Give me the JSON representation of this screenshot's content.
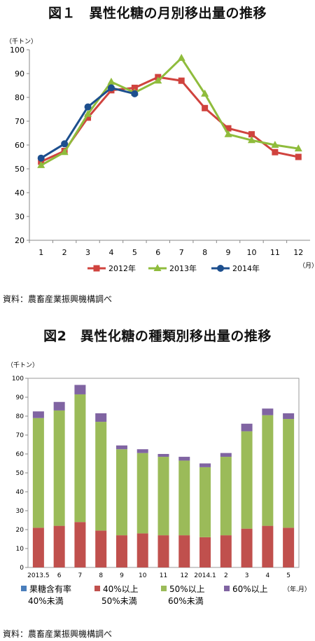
{
  "figure1": {
    "title": "図１　異性化糖の月別移出量の推移",
    "unit_label": "（千トン）",
    "x_unit_label": "（月）",
    "source": "資料：農畜産業振興機構調べ"
  },
  "figure2": {
    "title": "図2　異性化糖の種類別移出量の推移",
    "unit_label": "（千トン）",
    "x_unit_label": "（年.月）",
    "source": "資料：農畜産業振興機構調べ"
  },
  "chart_data": [
    {
      "type": "line",
      "title": "図１　異性化糖の月別移出量の推移",
      "ylabel": "（千トン）",
      "xlabel": "（月）",
      "ylim": [
        20,
        100
      ],
      "yticks": [
        20,
        30,
        40,
        50,
        60,
        70,
        80,
        90,
        100
      ],
      "categories": [
        "1",
        "2",
        "3",
        "4",
        "5",
        "6",
        "7",
        "8",
        "9",
        "10",
        "11",
        "12"
      ],
      "grid": false,
      "legend": "bottom",
      "series": [
        {
          "name": "2012年",
          "color": "#d0433e",
          "marker": "square",
          "values": [
            53.0,
            57.5,
            71.5,
            83.0,
            84.0,
            88.5,
            87.0,
            75.5,
            67.0,
            64.5,
            57.0,
            55.0
          ]
        },
        {
          "name": "2013年",
          "color": "#8fbc3c",
          "marker": "triangle",
          "values": [
            51.5,
            57.0,
            73.0,
            86.5,
            82.0,
            87.0,
            96.5,
            81.5,
            64.5,
            62.0,
            60.0,
            58.5
          ]
        },
        {
          "name": "2014年",
          "color": "#1d4f8e",
          "marker": "circle",
          "values": [
            54.5,
            60.5,
            76.0,
            84.0,
            81.5,
            null,
            null,
            null,
            null,
            null,
            null,
            null
          ]
        }
      ]
    },
    {
      "type": "bar",
      "stacked": true,
      "title": "図2　異性化糖の種類別移出量の推移",
      "ylabel": "（千トン）",
      "xlabel": "（年.月）",
      "ylim": [
        0,
        100
      ],
      "yticks": [
        0,
        10,
        20,
        30,
        40,
        50,
        60,
        70,
        80,
        90,
        100
      ],
      "categories": [
        "2013.5",
        "6",
        "7",
        "8",
        "9",
        "10",
        "11",
        "12",
        "2014.1",
        "2",
        "3",
        "4",
        "5"
      ],
      "grid": false,
      "legend": "bottom",
      "series": [
        {
          "name": "果糖含有率40%未満",
          "name_lines": [
            "果糖含有率",
            "40%未満"
          ],
          "color": "#4a7ebb",
          "values": [
            0,
            0,
            0,
            0,
            0,
            0,
            0,
            0,
            0,
            0,
            0,
            0,
            0
          ]
        },
        {
          "name": "40%以上50%未満",
          "name_lines": [
            "40%以上",
            "50%未満"
          ],
          "color": "#c0504d",
          "values": [
            21.0,
            22.0,
            24.0,
            19.5,
            17.0,
            18.0,
            17.0,
            17.0,
            16.0,
            17.0,
            20.5,
            22.0,
            21.0
          ]
        },
        {
          "name": "50%以上60%未満",
          "name_lines": [
            "50%以上",
            "60%未満"
          ],
          "color": "#9bbb59",
          "values": [
            58.0,
            61.0,
            67.5,
            57.5,
            45.5,
            42.5,
            41.5,
            39.5,
            37.0,
            41.5,
            51.5,
            58.5,
            57.5
          ]
        },
        {
          "name": "60%以上",
          "name_lines": [
            "60%以上"
          ],
          "color": "#8064a2",
          "values": [
            3.5,
            4.5,
            5.0,
            4.5,
            2.0,
            2.0,
            1.5,
            2.0,
            2.0,
            2.0,
            4.0,
            3.5,
            3.0
          ]
        }
      ]
    }
  ]
}
